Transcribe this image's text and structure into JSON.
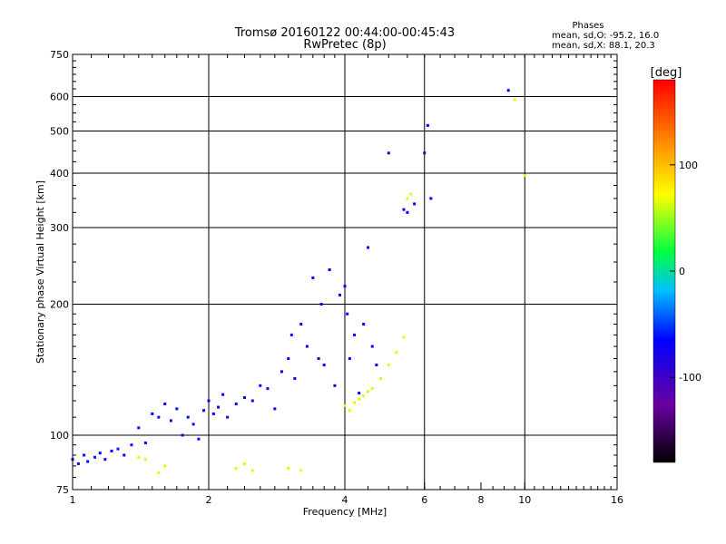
{
  "chart_data": {
    "type": "scatter",
    "title": "Tromsø 20160122 00:44:00-00:45:43",
    "subtitle": "RwPretec (8p)",
    "xlabel": "Frequency [MHz]",
    "ylabel": "Stationary phase Virtual Height [km]",
    "x_scale": "log",
    "y_scale": "log",
    "xlim": [
      1,
      16
    ],
    "ylim": [
      75,
      750
    ],
    "x_ticks": [
      1,
      2,
      4,
      6,
      8,
      10,
      16
    ],
    "x_tick_labels": [
      "1",
      "2",
      "4",
      "6",
      "8",
      "10",
      "16"
    ],
    "x_grid": [
      2,
      4,
      6,
      10
    ],
    "y_ticks": [
      75,
      100,
      200,
      300,
      400,
      500,
      600,
      750
    ],
    "y_tick_labels": [
      "75",
      "100",
      "200",
      "300",
      "400",
      "500",
      "600",
      "750"
    ],
    "y_grid": [
      100,
      200,
      300,
      400,
      500,
      600
    ],
    "legend_title": "Phases",
    "legend_lines": [
      "mean, sd,O: -95.2, 16.0",
      "mean, sd,X:  88.1, 20.3"
    ],
    "colorbar": {
      "label": "[deg]",
      "range": [
        -180,
        180
      ],
      "ticks": [
        100,
        0,
        -100
      ],
      "tick_labels": [
        "100",
        "0",
        "-100"
      ]
    },
    "series": [
      {
        "name": "O-mode",
        "phase": -95.2,
        "points": [
          [
            1.0,
            88,
            -95
          ],
          [
            1.03,
            86,
            -100
          ],
          [
            1.06,
            90,
            -92
          ],
          [
            1.08,
            87,
            -98
          ],
          [
            1.12,
            89,
            -90
          ],
          [
            1.15,
            91,
            -96
          ],
          [
            1.18,
            88,
            -102
          ],
          [
            1.22,
            92,
            -94
          ],
          [
            1.26,
            93,
            -88
          ],
          [
            1.3,
            90,
            -99
          ],
          [
            1.35,
            95,
            -97
          ],
          [
            1.4,
            104,
            -93
          ],
          [
            1.45,
            96,
            -101
          ],
          [
            1.5,
            112,
            -95
          ],
          [
            1.55,
            110,
            -91
          ],
          [
            1.6,
            118,
            -100
          ],
          [
            1.65,
            108,
            -94
          ],
          [
            1.7,
            115,
            -97
          ],
          [
            1.75,
            100,
            -103
          ],
          [
            1.8,
            110,
            -92
          ],
          [
            1.85,
            106,
            -98
          ],
          [
            1.9,
            98,
            -95
          ],
          [
            1.95,
            114,
            -100
          ],
          [
            2.0,
            120,
            -96
          ],
          [
            2.05,
            112,
            -93
          ],
          [
            2.1,
            116,
            -99
          ],
          [
            2.15,
            124,
            -95
          ],
          [
            2.2,
            110,
            -100
          ],
          [
            2.3,
            118,
            -94
          ],
          [
            2.4,
            122,
            -97
          ],
          [
            2.5,
            120,
            -101
          ],
          [
            2.6,
            130,
            -95
          ],
          [
            2.7,
            128,
            -92
          ],
          [
            2.8,
            115,
            -98
          ],
          [
            2.9,
            140,
            -96
          ],
          [
            3.0,
            150,
            -100
          ],
          [
            3.05,
            170,
            -93
          ],
          [
            3.1,
            135,
            -97
          ],
          [
            3.2,
            180,
            -95
          ],
          [
            3.3,
            160,
            -99
          ],
          [
            3.4,
            230,
            -94
          ],
          [
            3.5,
            150,
            -98
          ],
          [
            3.55,
            200,
            -96
          ],
          [
            3.6,
            145,
            -101
          ],
          [
            3.7,
            240,
            -95
          ],
          [
            3.8,
            130,
            -97
          ],
          [
            3.9,
            210,
            -100
          ],
          [
            4.0,
            220,
            -94
          ],
          [
            4.05,
            190,
            -98
          ],
          [
            4.1,
            150,
            -95
          ],
          [
            4.2,
            170,
            -99
          ],
          [
            4.3,
            125,
            -96
          ],
          [
            4.4,
            180,
            -93
          ],
          [
            4.5,
            270,
            -100
          ],
          [
            4.6,
            160,
            -97
          ],
          [
            4.7,
            145,
            -95
          ],
          [
            5.0,
            445,
            -98
          ],
          [
            5.4,
            330,
            -92
          ],
          [
            5.5,
            325,
            -96
          ],
          [
            5.7,
            340,
            -94
          ],
          [
            6.0,
            445,
            -99
          ],
          [
            6.1,
            515,
            -95
          ],
          [
            6.2,
            350,
            -97
          ],
          [
            9.2,
            620,
            -96
          ]
        ]
      },
      {
        "name": "X-mode",
        "phase": 88.1,
        "points": [
          [
            1.4,
            89,
            90
          ],
          [
            1.45,
            88,
            85
          ],
          [
            1.55,
            82,
            92
          ],
          [
            1.6,
            85,
            80
          ],
          [
            2.3,
            84,
            95
          ],
          [
            2.4,
            86,
            88
          ],
          [
            2.5,
            83,
            91
          ],
          [
            3.0,
            84,
            84
          ],
          [
            3.2,
            83,
            96
          ],
          [
            4.0,
            117,
            90
          ],
          [
            4.1,
            114,
            86
          ],
          [
            4.2,
            119,
            93
          ],
          [
            4.3,
            121,
            88
          ],
          [
            4.4,
            123,
            95
          ],
          [
            4.5,
            126,
            84
          ],
          [
            4.6,
            128,
            92
          ],
          [
            4.8,
            135,
            87
          ],
          [
            5.0,
            145,
            91
          ],
          [
            5.2,
            155,
            89
          ],
          [
            5.4,
            168,
            94
          ],
          [
            5.5,
            350,
            88
          ],
          [
            5.6,
            358,
            92
          ],
          [
            9.5,
            590,
            90
          ],
          [
            10.0,
            395,
            86
          ]
        ]
      }
    ]
  }
}
